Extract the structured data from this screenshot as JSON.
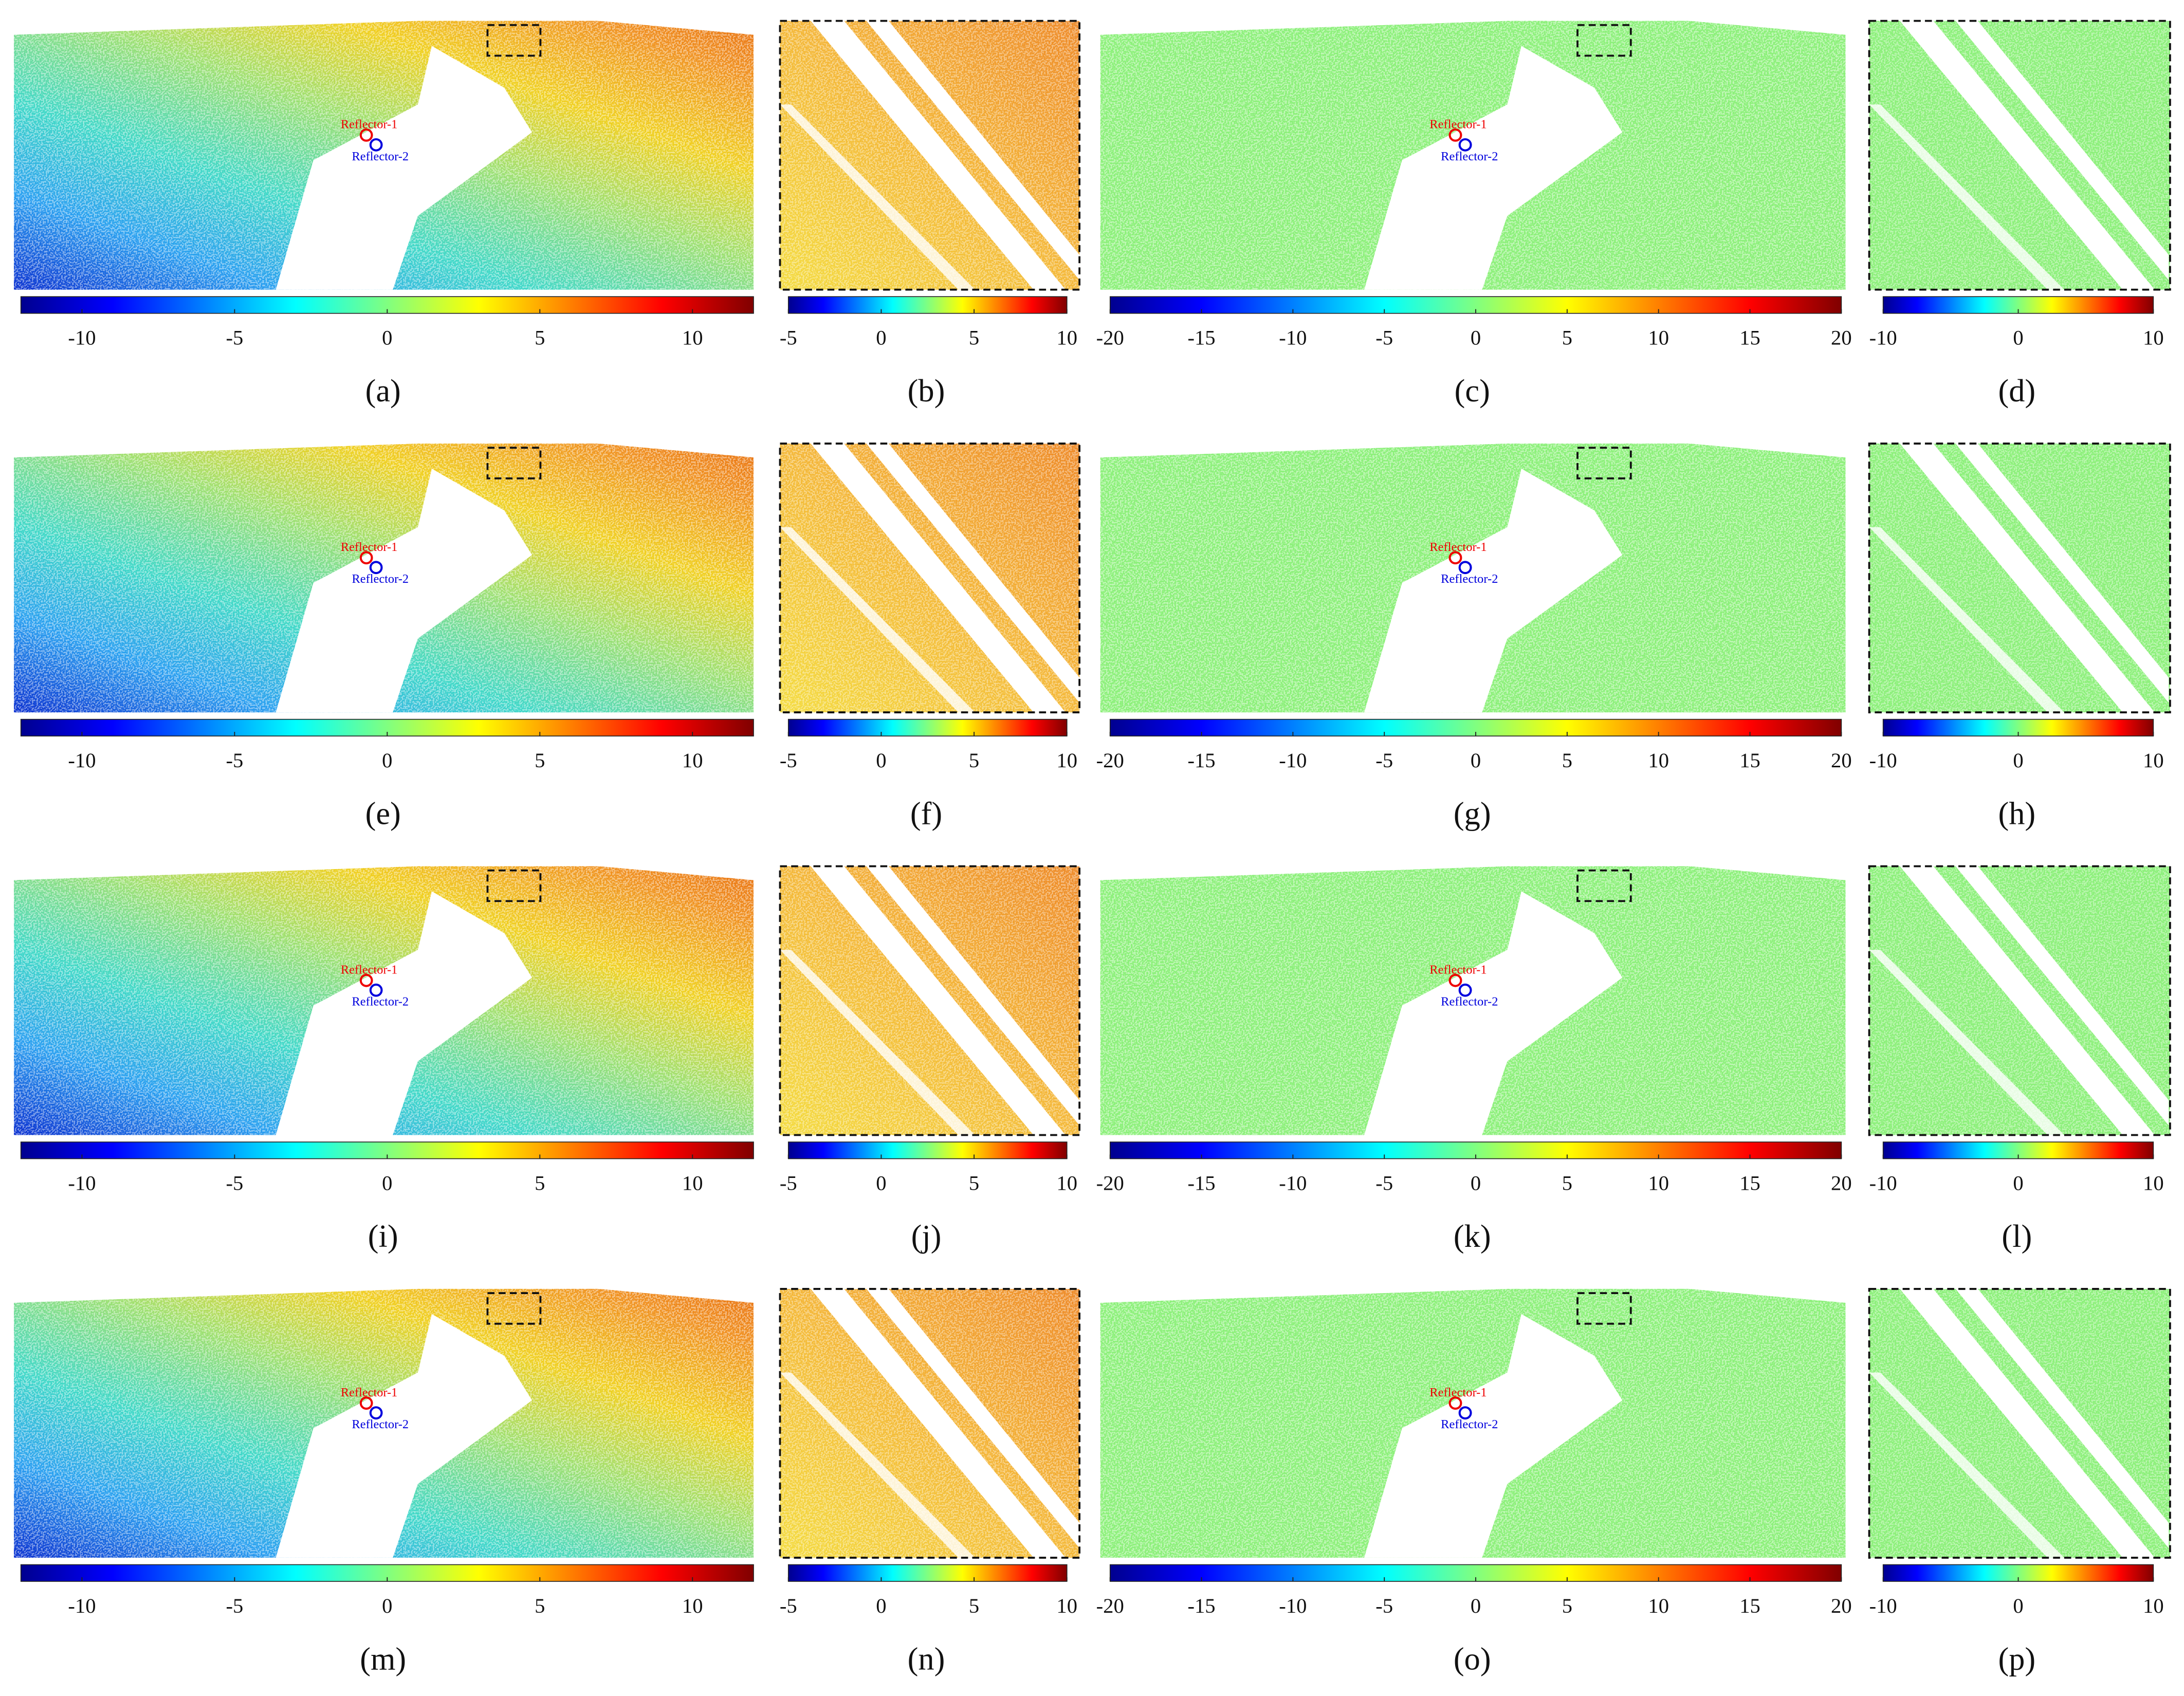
{
  "panels": [
    {
      "label": "(a)",
      "colorbar": {
        "lim": [
          -12,
          12
        ],
        "ticks": [
          -10,
          -5,
          0,
          5,
          10
        ]
      },
      "annotations": [
        "Reflector-1",
        "Reflector-2"
      ]
    },
    {
      "label": "(b)",
      "colorbar": {
        "lim": [
          -5,
          10
        ],
        "ticks": [
          -5,
          0,
          5,
          10
        ]
      }
    },
    {
      "label": "(c)",
      "colorbar": {
        "lim": [
          -20,
          20
        ],
        "ticks": [
          -20,
          -15,
          -10,
          -5,
          0,
          5,
          10,
          15,
          20
        ]
      },
      "annotations": [
        "Reflector-1",
        "Reflector-2"
      ]
    },
    {
      "label": "(d)",
      "colorbar": {
        "lim": [
          -10,
          10
        ],
        "ticks": [
          -10,
          0,
          10
        ]
      }
    },
    {
      "label": "(e)",
      "colorbar": {
        "lim": [
          -12,
          12
        ],
        "ticks": [
          -10,
          -5,
          0,
          5,
          10
        ]
      },
      "annotations": [
        "Reflector-1",
        "Reflector-2"
      ]
    },
    {
      "label": "(f)",
      "colorbar": {
        "lim": [
          -5,
          10
        ],
        "ticks": [
          -5,
          0,
          5,
          10
        ]
      }
    },
    {
      "label": "(g)",
      "colorbar": {
        "lim": [
          -20,
          20
        ],
        "ticks": [
          -20,
          -15,
          -10,
          -5,
          0,
          5,
          10,
          15,
          20
        ]
      },
      "annotations": [
        "Reflector-1",
        "Reflector-2"
      ]
    },
    {
      "label": "(h)",
      "colorbar": {
        "lim": [
          -10,
          10
        ],
        "ticks": [
          -10,
          0,
          10
        ]
      }
    },
    {
      "label": "(i)",
      "colorbar": {
        "lim": [
          -12,
          12
        ],
        "ticks": [
          -10,
          -5,
          0,
          5,
          10
        ]
      },
      "annotations": [
        "Reflector-1",
        "Reflector-2"
      ]
    },
    {
      "label": "(j)",
      "colorbar": {
        "lim": [
          -5,
          10
        ],
        "ticks": [
          -5,
          0,
          5,
          10
        ]
      }
    },
    {
      "label": "(k)",
      "colorbar": {
        "lim": [
          -20,
          20
        ],
        "ticks": [
          -20,
          -15,
          -10,
          -5,
          0,
          5,
          10,
          15,
          20
        ]
      },
      "annotations": [
        "Reflector-1",
        "Reflector-2"
      ]
    },
    {
      "label": "(l)",
      "colorbar": {
        "lim": [
          -10,
          10
        ],
        "ticks": [
          -10,
          0,
          10
        ]
      }
    },
    {
      "label": "(m)",
      "colorbar": {
        "lim": [
          -12,
          12
        ],
        "ticks": [
          -10,
          -5,
          0,
          5,
          10
        ]
      },
      "annotations": [
        "Reflector-1",
        "Reflector-2"
      ]
    },
    {
      "label": "(n)",
      "colorbar": {
        "lim": [
          -5,
          10
        ],
        "ticks": [
          -5,
          0,
          5,
          10
        ]
      }
    },
    {
      "label": "(o)",
      "colorbar": {
        "lim": [
          -20,
          20
        ],
        "ticks": [
          -20,
          -15,
          -10,
          -5,
          0,
          5,
          10,
          15,
          20
        ]
      },
      "annotations": [
        "Reflector-1",
        "Reflector-2"
      ]
    },
    {
      "label": "(p)",
      "colorbar": {
        "lim": [
          -10,
          10
        ],
        "ticks": [
          -10,
          0,
          10
        ]
      }
    }
  ]
}
